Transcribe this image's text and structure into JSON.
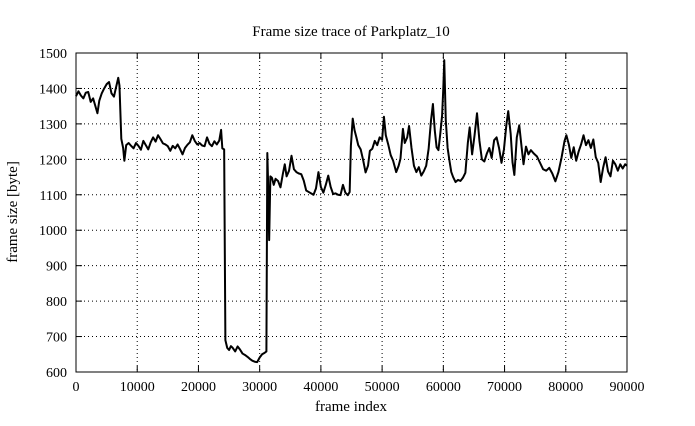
{
  "figure": {
    "background": "#ffffff",
    "text_color": "#000000"
  },
  "chart_data": {
    "type": "line",
    "title": "Frame size trace of Parkplatz_10",
    "xlabel": "frame index",
    "ylabel": "frame size [byte]",
    "xlim": [
      0,
      90000
    ],
    "ylim": [
      600,
      1500
    ],
    "xticks": [
      0,
      10000,
      20000,
      30000,
      40000,
      50000,
      60000,
      70000,
      80000,
      90000
    ],
    "yticks": [
      600,
      700,
      800,
      900,
      1000,
      1100,
      1200,
      1300,
      1400,
      1500
    ],
    "grid": true,
    "grid_style": "dotted",
    "legend": "none",
    "series": [
      {
        "name": "frame size trace",
        "color": "#000000",
        "line_width": 2,
        "points": [
          [
            0,
            1378
          ],
          [
            400,
            1392
          ],
          [
            800,
            1380
          ],
          [
            1200,
            1372
          ],
          [
            1600,
            1388
          ],
          [
            2000,
            1390
          ],
          [
            2400,
            1362
          ],
          [
            2800,
            1372
          ],
          [
            3200,
            1348
          ],
          [
            3500,
            1330
          ],
          [
            3800,
            1365
          ],
          [
            4200,
            1386
          ],
          [
            4600,
            1400
          ],
          [
            5000,
            1412
          ],
          [
            5400,
            1418
          ],
          [
            5800,
            1386
          ],
          [
            6200,
            1377
          ],
          [
            6500,
            1400
          ],
          [
            6900,
            1430
          ],
          [
            7100,
            1408
          ],
          [
            7400,
            1258
          ],
          [
            7700,
            1232
          ],
          [
            7900,
            1196
          ],
          [
            8200,
            1240
          ],
          [
            8600,
            1246
          ],
          [
            9000,
            1238
          ],
          [
            9400,
            1231
          ],
          [
            9800,
            1246
          ],
          [
            10200,
            1238
          ],
          [
            10600,
            1227
          ],
          [
            11000,
            1252
          ],
          [
            11400,
            1240
          ],
          [
            11800,
            1228
          ],
          [
            12200,
            1248
          ],
          [
            12600,
            1262
          ],
          [
            13000,
            1250
          ],
          [
            13400,
            1268
          ],
          [
            13800,
            1257
          ],
          [
            14200,
            1245
          ],
          [
            14600,
            1242
          ],
          [
            15000,
            1237
          ],
          [
            15400,
            1224
          ],
          [
            15800,
            1238
          ],
          [
            16200,
            1231
          ],
          [
            16600,
            1242
          ],
          [
            17000,
            1229
          ],
          [
            17400,
            1214
          ],
          [
            17800,
            1232
          ],
          [
            18200,
            1241
          ],
          [
            18600,
            1248
          ],
          [
            19000,
            1268
          ],
          [
            19400,
            1252
          ],
          [
            19800,
            1242
          ],
          [
            20200,
            1246
          ],
          [
            20600,
            1239
          ],
          [
            21000,
            1237
          ],
          [
            21400,
            1262
          ],
          [
            21800,
            1244
          ],
          [
            22200,
            1237
          ],
          [
            22600,
            1251
          ],
          [
            23000,
            1242
          ],
          [
            23400,
            1253
          ],
          [
            23700,
            1283
          ],
          [
            23900,
            1231
          ],
          [
            24200,
            1228
          ],
          [
            24400,
            690
          ],
          [
            24700,
            668
          ],
          [
            25000,
            662
          ],
          [
            25300,
            673
          ],
          [
            25600,
            668
          ],
          [
            26000,
            658
          ],
          [
            26400,
            672
          ],
          [
            26800,
            663
          ],
          [
            27200,
            652
          ],
          [
            27600,
            648
          ],
          [
            28000,
            643
          ],
          [
            28400,
            637
          ],
          [
            28800,
            632
          ],
          [
            29200,
            629
          ],
          [
            29600,
            628
          ],
          [
            30000,
            641
          ],
          [
            30400,
            650
          ],
          [
            30800,
            654
          ],
          [
            31100,
            658
          ],
          [
            31250,
            1218
          ],
          [
            31400,
            1120
          ],
          [
            31550,
            972
          ],
          [
            31750,
            1152
          ],
          [
            32000,
            1148
          ],
          [
            32300,
            1128
          ],
          [
            32600,
            1145
          ],
          [
            33000,
            1139
          ],
          [
            33400,
            1121
          ],
          [
            33800,
            1160
          ],
          [
            34100,
            1186
          ],
          [
            34400,
            1152
          ],
          [
            34800,
            1168
          ],
          [
            35200,
            1210
          ],
          [
            35600,
            1172
          ],
          [
            36000,
            1164
          ],
          [
            36400,
            1160
          ],
          [
            36800,
            1158
          ],
          [
            37200,
            1140
          ],
          [
            37600,
            1112
          ],
          [
            38000,
            1108
          ],
          [
            38400,
            1104
          ],
          [
            38800,
            1100
          ],
          [
            39200,
            1118
          ],
          [
            39600,
            1164
          ],
          [
            40000,
            1122
          ],
          [
            40400,
            1106
          ],
          [
            40800,
            1128
          ],
          [
            41200,
            1154
          ],
          [
            41600,
            1122
          ],
          [
            42000,
            1102
          ],
          [
            42400,
            1104
          ],
          [
            42800,
            1100
          ],
          [
            43200,
            1099
          ],
          [
            43600,
            1128
          ],
          [
            44000,
            1106
          ],
          [
            44400,
            1099
          ],
          [
            44700,
            1108
          ],
          [
            44900,
            1238
          ],
          [
            45200,
            1315
          ],
          [
            45500,
            1282
          ],
          [
            45800,
            1262
          ],
          [
            46100,
            1240
          ],
          [
            46500,
            1228
          ],
          [
            46900,
            1198
          ],
          [
            47300,
            1163
          ],
          [
            47700,
            1182
          ],
          [
            48000,
            1224
          ],
          [
            48400,
            1230
          ],
          [
            48800,
            1252
          ],
          [
            49200,
            1240
          ],
          [
            49600,
            1262
          ],
          [
            50000,
            1255
          ],
          [
            50300,
            1320
          ],
          [
            50600,
            1268
          ],
          [
            51000,
            1242
          ],
          [
            51400,
            1212
          ],
          [
            51800,
            1196
          ],
          [
            52300,
            1164
          ],
          [
            52700,
            1182
          ],
          [
            53000,
            1202
          ],
          [
            53400,
            1286
          ],
          [
            53700,
            1246
          ],
          [
            54100,
            1262
          ],
          [
            54400,
            1294
          ],
          [
            54800,
            1232
          ],
          [
            55200,
            1182
          ],
          [
            55600,
            1164
          ],
          [
            56000,
            1178
          ],
          [
            56400,
            1154
          ],
          [
            56800,
            1166
          ],
          [
            57200,
            1182
          ],
          [
            57600,
            1230
          ],
          [
            58000,
            1312
          ],
          [
            58300,
            1356
          ],
          [
            58600,
            1282
          ],
          [
            58900,
            1234
          ],
          [
            59200,
            1226
          ],
          [
            59500,
            1272
          ],
          [
            59800,
            1324
          ],
          [
            60000,
            1402
          ],
          [
            60150,
            1480
          ],
          [
            60400,
            1310
          ],
          [
            60700,
            1232
          ],
          [
            61000,
            1196
          ],
          [
            61300,
            1164
          ],
          [
            61600,
            1150
          ],
          [
            62000,
            1136
          ],
          [
            62400,
            1142
          ],
          [
            62800,
            1139
          ],
          [
            63200,
            1148
          ],
          [
            63600,
            1162
          ],
          [
            64000,
            1246
          ],
          [
            64300,
            1290
          ],
          [
            64700,
            1214
          ],
          [
            65100,
            1268
          ],
          [
            65500,
            1330
          ],
          [
            65900,
            1252
          ],
          [
            66300,
            1200
          ],
          [
            66700,
            1194
          ],
          [
            67100,
            1216
          ],
          [
            67500,
            1232
          ],
          [
            67900,
            1204
          ],
          [
            68300,
            1254
          ],
          [
            68700,
            1262
          ],
          [
            69100,
            1232
          ],
          [
            69500,
            1190
          ],
          [
            69900,
            1228
          ],
          [
            70300,
            1298
          ],
          [
            70600,
            1336
          ],
          [
            71000,
            1272
          ],
          [
            71300,
            1192
          ],
          [
            71600,
            1156
          ],
          [
            72000,
            1262
          ],
          [
            72400,
            1296
          ],
          [
            72800,
            1232
          ],
          [
            73100,
            1186
          ],
          [
            73500,
            1236
          ],
          [
            73900,
            1214
          ],
          [
            74300,
            1226
          ],
          [
            74800,
            1216
          ],
          [
            75300,
            1208
          ],
          [
            75800,
            1190
          ],
          [
            76300,
            1172
          ],
          [
            76800,
            1168
          ],
          [
            77300,
            1176
          ],
          [
            77800,
            1160
          ],
          [
            78300,
            1138
          ],
          [
            78800,
            1164
          ],
          [
            79300,
            1204
          ],
          [
            79800,
            1252
          ],
          [
            80100,
            1268
          ],
          [
            80500,
            1242
          ],
          [
            80900,
            1204
          ],
          [
            81300,
            1234
          ],
          [
            81700,
            1196
          ],
          [
            82100,
            1222
          ],
          [
            82500,
            1242
          ],
          [
            82900,
            1268
          ],
          [
            83300,
            1240
          ],
          [
            83700,
            1254
          ],
          [
            84100,
            1232
          ],
          [
            84500,
            1256
          ],
          [
            84900,
            1206
          ],
          [
            85300,
            1190
          ],
          [
            85700,
            1136
          ],
          [
            86100,
            1176
          ],
          [
            86500,
            1206
          ],
          [
            86900,
            1166
          ],
          [
            87300,
            1152
          ],
          [
            87700,
            1196
          ],
          [
            88100,
            1186
          ],
          [
            88500,
            1168
          ],
          [
            88900,
            1186
          ],
          [
            89300,
            1174
          ],
          [
            89700,
            1186
          ],
          [
            90000,
            1182
          ]
        ]
      }
    ]
  }
}
